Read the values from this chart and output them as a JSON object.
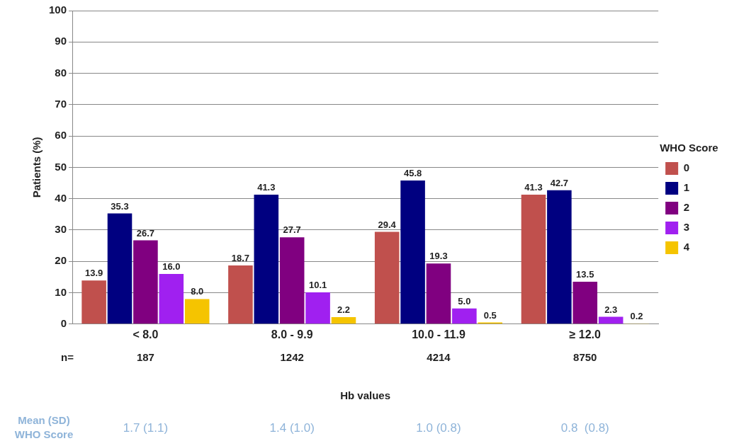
{
  "chart_data": {
    "type": "bar",
    "xlabel": "Hb values",
    "ylabel": "Patients (%)",
    "legend_title": "WHO Score",
    "categories": [
      "< 8.0",
      "8.0 - 9.9",
      "10.0 - 11.9",
      "≥ 12.0"
    ],
    "series": [
      {
        "name": "0",
        "color": "#c0504d",
        "values": [
          13.9,
          18.7,
          29.4,
          41.3
        ],
        "value_labels": [
          "13.9",
          "18.7",
          "29.4",
          "41.3"
        ]
      },
      {
        "name": "1",
        "color": "#000080",
        "values": [
          35.3,
          41.3,
          45.8,
          42.7
        ],
        "value_labels": [
          "35.3",
          "41.3",
          "45.8",
          "42.7"
        ]
      },
      {
        "name": "2",
        "color": "#800080",
        "values": [
          26.7,
          27.7,
          19.3,
          13.5
        ],
        "value_labels": [
          "26.7",
          "27.7",
          "19.3",
          "13.5"
        ]
      },
      {
        "name": "3",
        "color": "#a020f0",
        "values": [
          16.0,
          10.1,
          5.0,
          2.3
        ],
        "value_labels": [
          "16.0",
          "10.1",
          "5.0",
          "2.3"
        ]
      },
      {
        "name": "4",
        "color": "#f5c400",
        "values": [
          8.0,
          2.2,
          0.5,
          0.2
        ],
        "value_labels": [
          "8.0",
          "2.2",
          "0.5",
          "0.2"
        ]
      }
    ],
    "ylim": [
      0,
      100
    ],
    "yticks": [
      0,
      10,
      20,
      30,
      40,
      50,
      60,
      70,
      80,
      90,
      100
    ],
    "grid": "y",
    "legend": "right",
    "annotations": [
      "n=",
      "187",
      "1242",
      "4214",
      "8750",
      "Mean (SD)\nWHO Score",
      "1.7 (1.1)",
      "1.4 (1.0)",
      "1.0 (0.8)",
      "0.8  (0.8)"
    ]
  }
}
